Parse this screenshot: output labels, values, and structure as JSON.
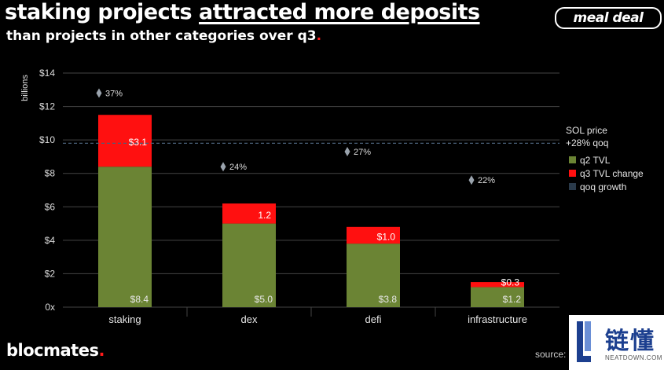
{
  "header": {
    "title_line1_a": "staking projects ",
    "title_line1_b": "attracted more deposits",
    "title_line2": "than projects in other categories over q3",
    "title_line2_dot": ".",
    "logo_text": "meal deal"
  },
  "footer": {
    "brand": "blocmates",
    "brand_dot": ".",
    "source": "source:"
  },
  "watermark": {
    "zh": "链懂",
    "en": "NEATDOWN.COM"
  },
  "colors": {
    "q2": "#6b8434",
    "q3": "#ff1010",
    "grid": "#444444",
    "dash": "#2a3a4a"
  },
  "chart_data": {
    "type": "bar",
    "stacked": true,
    "ylabel": "billions",
    "ylim": [
      0,
      14
    ],
    "y_ticks": [
      {
        "value": 0,
        "label": "0x"
      },
      {
        "value": 2,
        "label": "$2"
      },
      {
        "value": 4,
        "label": "$4"
      },
      {
        "value": 6,
        "label": "$6"
      },
      {
        "value": 8,
        "label": "$8"
      },
      {
        "value": 10,
        "label": "$10"
      },
      {
        "value": 12,
        "label": "$12"
      },
      {
        "value": 14,
        "label": "$14"
      }
    ],
    "categories": [
      "staking",
      "dex",
      "defi",
      "infrastructure"
    ],
    "series": [
      {
        "name": "q2 TVL",
        "values": [
          8.4,
          5.0,
          3.8,
          1.2
        ],
        "labels": [
          "$8.4",
          "$5.0",
          "$3.8",
          "$1.2"
        ]
      },
      {
        "name": "q3 TVL change",
        "values": [
          3.1,
          1.2,
          1.0,
          0.3
        ],
        "labels": [
          "$3.1",
          "1.2",
          "$1.0",
          "$0.3"
        ]
      }
    ],
    "growth": {
      "name": "qoq growth",
      "labels": [
        "37%",
        "24%",
        "27%",
        "22%"
      ],
      "y_values": [
        12.8,
        8.4,
        9.3,
        7.6
      ]
    },
    "reference_line": {
      "value": 9.8,
      "label_line1": "SOL price",
      "label_line2": "+28% qoq"
    },
    "legend": [
      {
        "name": "q2 TVL",
        "color": "#6b8434"
      },
      {
        "name": "q3 TVL change",
        "color": "#ff1010"
      },
      {
        "name": "qoq growth",
        "color": "#2a3a4a"
      }
    ]
  }
}
